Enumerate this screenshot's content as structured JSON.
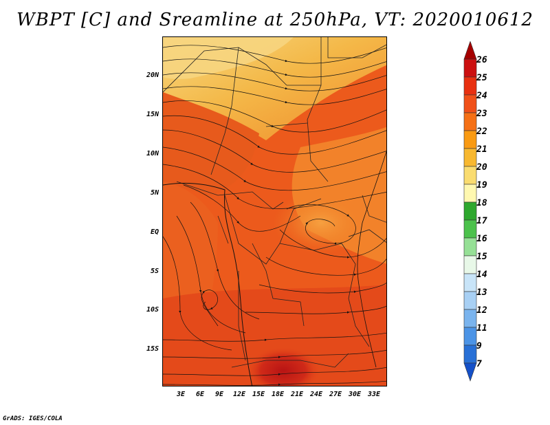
{
  "title": "WBPT [C] and Sreamline at 250hPa, VT: 2020010612",
  "credit": "GrADS: IGES/COLA",
  "map": {
    "variable": "Wet-bulb potential temperature",
    "lat_labels": [
      "20N",
      "15N",
      "10N",
      "5N",
      "EQ",
      "5S",
      "10S",
      "15S"
    ],
    "lon_labels": [
      "3E",
      "6E",
      "9E",
      "12E",
      "15E",
      "18E",
      "21E",
      "24E",
      "27E",
      "30E",
      "33E"
    ],
    "dominant_colors": {
      "north_band": "#f4c870",
      "west_sahel": "#e8601c",
      "central": "#f07020",
      "east": "#f08a2a",
      "south": "#e84a1a",
      "hot_spot": "#c8201a"
    }
  },
  "colorbar": {
    "levels": [
      "26",
      "25",
      "24",
      "23",
      "22",
      "21",
      "20",
      "19",
      "18",
      "17",
      "16",
      "15",
      "14",
      "13",
      "12",
      "11",
      "9",
      "7"
    ],
    "colors": [
      "#a50000",
      "#cc1010",
      "#e83010",
      "#f05018",
      "#f57015",
      "#f99a12",
      "#f8b830",
      "#fadc70",
      "#fff8b0",
      "#2ea82e",
      "#4cc24c",
      "#96e096",
      "#e8f8e8",
      "#c8e4f8",
      "#a8d0f4",
      "#7ab4ee",
      "#4c94e6",
      "#2870d6",
      "#1450c8"
    ]
  }
}
